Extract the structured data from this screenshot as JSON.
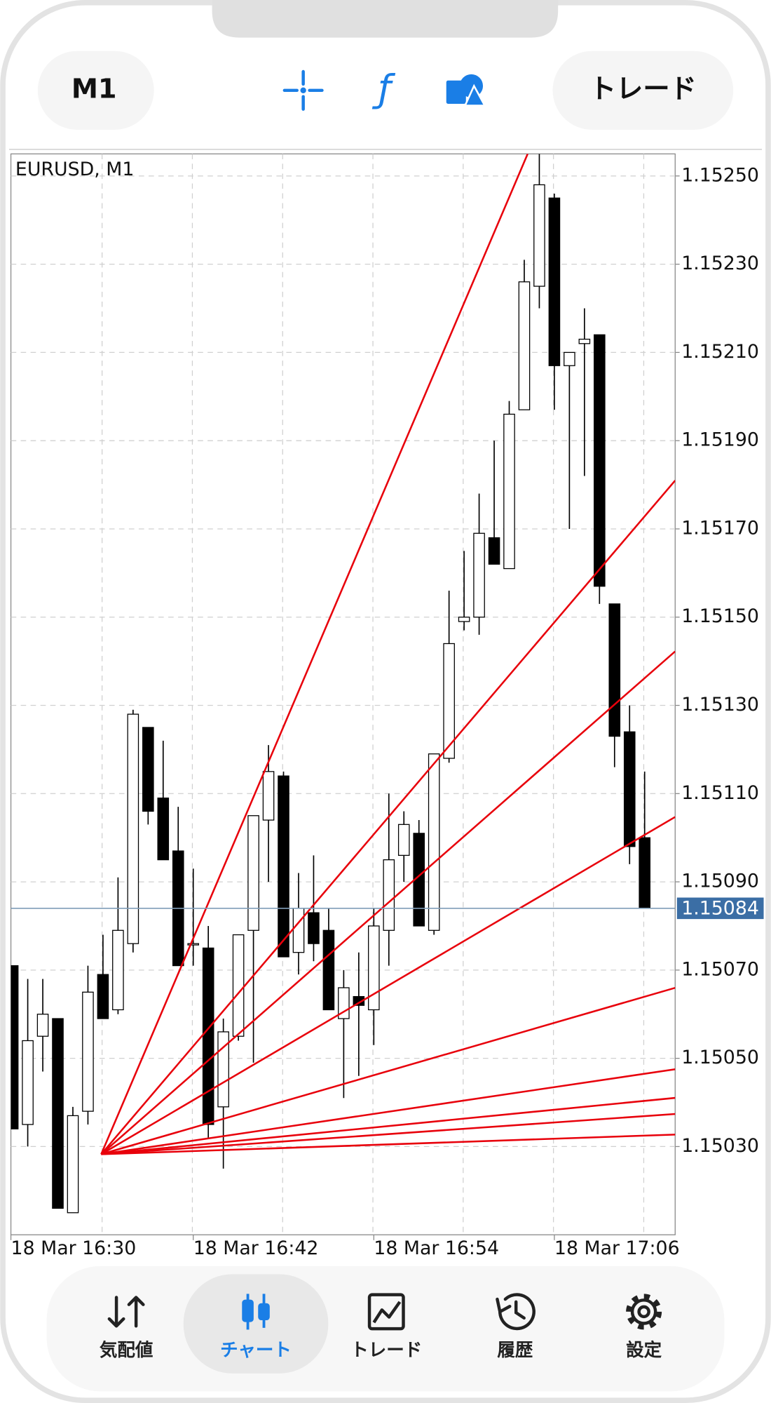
{
  "toolbar": {
    "timeframe": "M1",
    "trade": "トレード"
  },
  "chart_data": {
    "type": "candlestick",
    "title": "EURUSD, M1",
    "categories": [
      "18 Mar 16:30",
      null,
      null,
      null,
      null,
      null,
      null,
      null,
      null,
      null,
      null,
      null,
      "18 Mar 16:42",
      null,
      null,
      null,
      null,
      null,
      null,
      null,
      null,
      null,
      null,
      null,
      "18 Mar 16:54",
      null,
      null,
      null,
      null,
      null,
      null,
      null,
      null,
      null,
      null,
      null,
      "18 Mar 17:06",
      null,
      null,
      null,
      null,
      null,
      null
    ],
    "open": [
      1.15071,
      1.15035,
      1.15055,
      1.15059,
      1.15015,
      1.15038,
      1.15069,
      1.15061,
      1.15076,
      1.15125,
      1.15109,
      1.15097,
      1.15076,
      1.15075,
      1.15039,
      1.15055,
      1.15079,
      1.15104,
      1.15114,
      1.15074,
      1.15083,
      1.15079,
      1.15059,
      1.15064,
      1.15061,
      1.15079,
      1.15096,
      1.15101,
      1.15079,
      1.15118,
      1.15149,
      1.1515,
      1.15168,
      1.15161,
      1.15197,
      1.15225,
      1.15245,
      1.15207,
      1.15212,
      1.15214,
      1.15153,
      1.15124,
      1.151
    ],
    "high": [
      1.15071,
      1.15068,
      1.15068,
      1.15059,
      1.15039,
      1.15071,
      1.15078,
      1.15091,
      1.15129,
      1.15125,
      1.15122,
      1.15107,
      1.15093,
      1.1508,
      1.15059,
      1.15078,
      1.15105,
      1.15121,
      1.15115,
      1.15092,
      1.15096,
      1.15084,
      1.1507,
      1.15074,
      1.15084,
      1.1511,
      1.15106,
      1.15104,
      1.15119,
      1.15156,
      1.15165,
      1.15178,
      1.1519,
      1.15199,
      1.15231,
      1.15255,
      1.15246,
      1.1521,
      1.1522,
      1.15214,
      1.15153,
      1.1513,
      1.15115
    ],
    "low": [
      1.15034,
      1.1503,
      1.15047,
      1.15016,
      1.15015,
      1.15035,
      1.15059,
      1.1506,
      1.15074,
      1.15103,
      1.15095,
      1.15071,
      1.15071,
      1.15032,
      1.15025,
      1.15054,
      1.15049,
      1.1509,
      1.15073,
      1.15069,
      1.15072,
      1.15061,
      1.15041,
      1.15046,
      1.15053,
      1.15071,
      1.1509,
      1.1508,
      1.15078,
      1.15117,
      1.15147,
      1.15146,
      1.15162,
      1.15161,
      1.15197,
      1.1522,
      1.15197,
      1.1517,
      1.15182,
      1.15153,
      1.15116,
      1.15094,
      1.15084
    ],
    "close": [
      1.15034,
      1.15054,
      1.1506,
      1.15016,
      1.15037,
      1.15065,
      1.15059,
      1.15079,
      1.15128,
      1.15106,
      1.15095,
      1.15071,
      1.15076,
      1.15035,
      1.15056,
      1.15078,
      1.15105,
      1.15115,
      1.15073,
      1.15084,
      1.15076,
      1.15061,
      1.15066,
      1.15062,
      1.1508,
      1.15095,
      1.15103,
      1.1508,
      1.15119,
      1.15144,
      1.1515,
      1.15169,
      1.15162,
      1.15196,
      1.15226,
      1.15248,
      1.15207,
      1.1521,
      1.15213,
      1.15157,
      1.15123,
      1.15098,
      1.15084
    ],
    "up_color": "#ffffff",
    "down_color": "#000000",
    "ylim": [
      1.1501,
      1.15255
    ],
    "yticks": [
      {
        "value": 1.1525,
        "label": "1.15250"
      },
      {
        "value": 1.1523,
        "label": "1.15230"
      },
      {
        "value": 1.1521,
        "label": "1.15210"
      },
      {
        "value": 1.1519,
        "label": "1.15190"
      },
      {
        "value": 1.1517,
        "label": "1.15170"
      },
      {
        "value": 1.1515,
        "label": "1.15150"
      },
      {
        "value": 1.1513,
        "label": "1.15130"
      },
      {
        "value": 1.1511,
        "label": "1.15110"
      },
      {
        "value": 1.1509,
        "label": "1.15090"
      },
      {
        "value": 1.1507,
        "label": "1.15070"
      },
      {
        "value": 1.1505,
        "label": "1.15050"
      },
      {
        "value": 1.1503,
        "label": "1.15030"
      }
    ],
    "last_price": 1.15084,
    "grid": true
  },
  "nav": [
    "気配値",
    "チャート",
    "トレード",
    "履歴",
    "設定"
  ]
}
